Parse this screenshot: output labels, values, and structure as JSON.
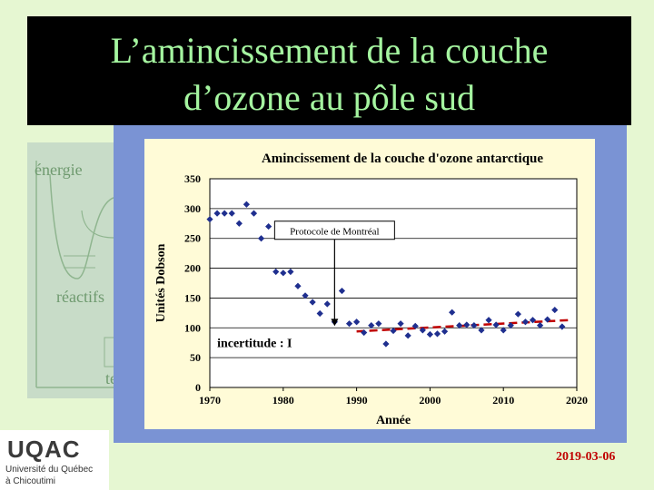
{
  "slide": {
    "title_line1": "L’amincissement de la couche",
    "title_line2": "d’ozone au pôle sud",
    "date": "2019-03-06",
    "background_color": "#e6f7d2",
    "title_color": "#a5f5a0",
    "date_color": "#c00000"
  },
  "background_diagram": {
    "label_energie": "énergie",
    "label_reactifs": "réactifs",
    "label_t": "te"
  },
  "logo": {
    "mark": "UQAC",
    "line1": "Université du Québec",
    "line2": "à Chicoutimi"
  },
  "chart_data": {
    "type": "scatter",
    "title": "Amincissement de la couche d'ozone antarctique",
    "xlabel": "Année",
    "ylabel": "Unités Dobson",
    "xlim": [
      1970,
      2020
    ],
    "ylim": [
      0,
      350
    ],
    "xticks": [
      1970,
      1980,
      1990,
      2000,
      2010,
      2020
    ],
    "yticks": [
      0,
      50,
      100,
      150,
      200,
      250,
      300,
      350
    ],
    "grid": true,
    "marker_color": "#1f2f8f",
    "trend_color": "#c00000",
    "points": [
      [
        1970,
        282
      ],
      [
        1971,
        292
      ],
      [
        1972,
        292
      ],
      [
        1973,
        292
      ],
      [
        1974,
        275
      ],
      [
        1975,
        307
      ],
      [
        1976,
        292
      ],
      [
        1977,
        250
      ],
      [
        1978,
        270
      ],
      [
        1979,
        194
      ],
      [
        1980,
        192
      ],
      [
        1981,
        194
      ],
      [
        1982,
        170
      ],
      [
        1983,
        154
      ],
      [
        1984,
        143
      ],
      [
        1985,
        124
      ],
      [
        1986,
        140
      ],
      [
        1987,
        110
      ],
      [
        1988,
        162
      ],
      [
        1989,
        107
      ],
      [
        1990,
        110
      ],
      [
        1991,
        92
      ],
      [
        1992,
        104
      ],
      [
        1993,
        107
      ],
      [
        1994,
        73
      ],
      [
        1995,
        95
      ],
      [
        1996,
        107
      ],
      [
        1997,
        87
      ],
      [
        1998,
        103
      ],
      [
        1999,
        96
      ],
      [
        2000,
        89
      ],
      [
        2001,
        90
      ],
      [
        2002,
        94
      ],
      [
        2003,
        126
      ],
      [
        2004,
        104
      ],
      [
        2005,
        105
      ],
      [
        2006,
        104
      ],
      [
        2007,
        96
      ],
      [
        2008,
        113
      ],
      [
        2009,
        105
      ],
      [
        2010,
        96
      ],
      [
        2011,
        104
      ],
      [
        2012,
        123
      ],
      [
        2013,
        110
      ],
      [
        2014,
        113
      ],
      [
        2015,
        104
      ],
      [
        2016,
        114
      ],
      [
        2017,
        130
      ],
      [
        2018,
        102
      ]
    ],
    "trend_line": {
      "x": [
        1990,
        2019
      ],
      "y": [
        94,
        113
      ]
    },
    "annotations": [
      {
        "text": "Protocole de Montréal",
        "x": 1987,
        "y": 253,
        "arrow_to": [
          1987,
          103
        ]
      },
      {
        "text": "incertitude : I",
        "x": 1971,
        "y": 68
      }
    ]
  }
}
